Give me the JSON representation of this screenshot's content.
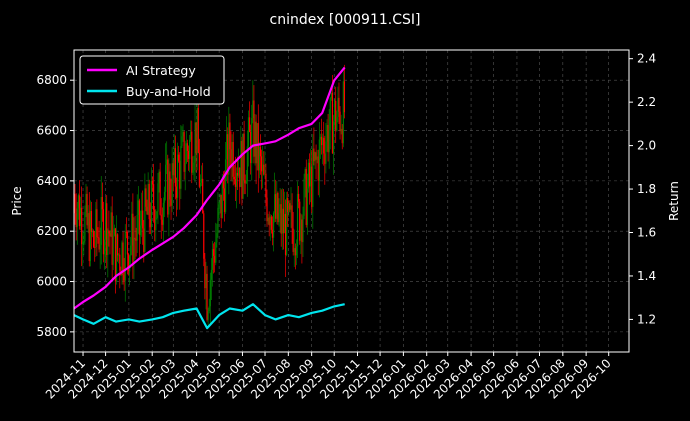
{
  "chart_data": {
    "type": "line",
    "title": "cnindex [000911.CSI]",
    "ylabel": "Price",
    "y2label": "Return",
    "ylim": [
      5720,
      6920
    ],
    "y2lim": [
      1.05,
      2.44
    ],
    "yticks": [
      5800,
      6000,
      6200,
      6400,
      6600,
      6800
    ],
    "y2ticks": [
      "1.2",
      "1.4",
      "1.6",
      "1.8",
      "2.0",
      "2.2",
      "2.4"
    ],
    "xlim": [
      "2024-10-20",
      "2026-10-28"
    ],
    "xticks": [
      "2024-11",
      "2024-12",
      "2025-01",
      "2025-02",
      "2025-03",
      "2025-04",
      "2025-05",
      "2025-06",
      "2025-07",
      "2025-08",
      "2025-09",
      "2025-10",
      "2025-11",
      "2025-12",
      "2026-01",
      "2026-02",
      "2026-03",
      "2026-04",
      "2026-05",
      "2026-06",
      "2026-07",
      "2026-08",
      "2026-09",
      "2026-10"
    ],
    "grid": true,
    "legend_position": "top-left",
    "colors": {
      "up": "#008000",
      "down": "#ff0000",
      "ai": "#ff00ff",
      "bh": "#00e5ee",
      "grid": "#555555"
    },
    "series": [
      {
        "name": "AI Strategy",
        "axis": "right",
        "x": [
          "2024-10-20",
          "2024-11-01",
          "2024-11-15",
          "2024-12-01",
          "2024-12-15",
          "2025-01-01",
          "2025-01-15",
          "2025-02-01",
          "2025-02-15",
          "2025-03-01",
          "2025-03-15",
          "2025-04-01",
          "2025-04-15",
          "2025-05-01",
          "2025-05-15",
          "2025-06-01",
          "2025-06-15",
          "2025-07-01",
          "2025-07-15",
          "2025-08-01",
          "2025-08-15",
          "2025-09-01",
          "2025-09-15",
          "2025-10-01",
          "2025-10-15"
        ],
        "values": [
          1.25,
          1.28,
          1.31,
          1.35,
          1.4,
          1.44,
          1.48,
          1.52,
          1.55,
          1.58,
          1.62,
          1.68,
          1.75,
          1.82,
          1.9,
          1.96,
          2.0,
          2.01,
          2.02,
          2.05,
          2.08,
          2.1,
          2.15,
          2.3,
          2.36
        ]
      },
      {
        "name": "Buy-and-Hold",
        "axis": "right",
        "x": [
          "2024-10-20",
          "2024-11-01",
          "2024-11-15",
          "2024-12-01",
          "2024-12-15",
          "2025-01-01",
          "2025-01-15",
          "2025-02-01",
          "2025-02-15",
          "2025-03-01",
          "2025-03-15",
          "2025-04-01",
          "2025-04-15",
          "2025-05-01",
          "2025-05-15",
          "2025-06-01",
          "2025-06-15",
          "2025-07-01",
          "2025-07-15",
          "2025-08-01",
          "2025-08-15",
          "2025-09-01",
          "2025-09-15",
          "2025-10-01",
          "2025-10-15"
        ],
        "values": [
          1.22,
          1.2,
          1.18,
          1.21,
          1.19,
          1.2,
          1.19,
          1.2,
          1.21,
          1.23,
          1.24,
          1.25,
          1.16,
          1.22,
          1.25,
          1.24,
          1.27,
          1.22,
          1.2,
          1.22,
          1.21,
          1.23,
          1.24,
          1.26,
          1.27
        ]
      }
    ],
    "candles": {
      "name": "Price",
      "axis": "left",
      "x": [
        "2024-10-20",
        "2024-11-01",
        "2024-11-15",
        "2024-12-01",
        "2024-12-15",
        "2025-01-01",
        "2025-01-15",
        "2025-02-01",
        "2025-02-15",
        "2025-03-01",
        "2025-03-15",
        "2025-04-01",
        "2025-04-15",
        "2025-05-01",
        "2025-05-15",
        "2025-06-01",
        "2025-06-15",
        "2025-07-01",
        "2025-07-15",
        "2025-08-01",
        "2025-08-15",
        "2025-09-01",
        "2025-09-15",
        "2025-10-01",
        "2025-10-15"
      ],
      "values": [
        6350,
        6250,
        6150,
        6250,
        6100,
        6150,
        6200,
        6300,
        6350,
        6400,
        6500,
        6600,
        5950,
        6250,
        6550,
        6450,
        6600,
        6350,
        6250,
        6200,
        6250,
        6400,
        6550,
        6650,
        6680
      ]
    }
  }
}
